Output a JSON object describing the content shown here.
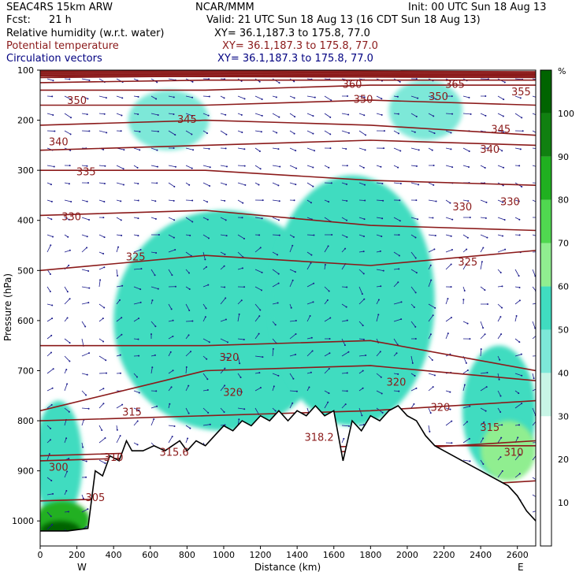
{
  "header": {
    "model": "SEAC4RS 15km ARW",
    "center": "NCAR/MMM",
    "init": "Init: 00 UTC Sun 18 Aug 13",
    "fcst_label": "Fcst:",
    "fcst_value": "21 h",
    "valid": "Valid: 21 UTC Sun 18 Aug 13 (16 CDT Sun 18 Aug 13)",
    "fields": [
      {
        "name": "Relative humidity (w.r.t. water)",
        "xy": "XY=  36.1,187.3 to 175.8, 77.0",
        "color": "#000000"
      },
      {
        "name": "Potential temperature",
        "xy": "XY=  36.1,187.3 to 175.8, 77.0",
        "color": "#8b1a1a"
      },
      {
        "name": "Circulation vectors",
        "xy": "XY=  36.1,187.3 to 175.8, 77.0",
        "color": "#000080"
      }
    ]
  },
  "chart_data": {
    "type": "heatmap",
    "xlabel": "Distance (km)",
    "ylabel": "Pressure (hPa)",
    "xlim": [
      0,
      2700
    ],
    "ylim": [
      1050,
      100
    ],
    "x_ticks": [
      0,
      200,
      400,
      600,
      800,
      1000,
      1200,
      1400,
      1600,
      1800,
      2000,
      2200,
      2400,
      2600
    ],
    "y_ticks": [
      100,
      200,
      300,
      400,
      500,
      600,
      700,
      800,
      900,
      1000
    ],
    "x_end_labels": {
      "left": "W",
      "right": "E"
    },
    "colorbar": {
      "unit": "%",
      "levels": [
        10,
        20,
        30,
        40,
        50,
        60,
        70,
        80,
        90,
        100
      ],
      "colors": [
        "#ffffff",
        "#ffffff",
        "#ffffff",
        "#c8f5e6",
        "#7de8d8",
        "#40dcc0",
        "#90ee90",
        "#50d850",
        "#20b020",
        "#108010",
        "#006400"
      ]
    },
    "rh_blobs": [
      {
        "x": 1000,
        "p": 520,
        "rx": 420,
        "rp": 130,
        "level": 7
      },
      {
        "x": 1200,
        "p": 520,
        "rx": 200,
        "rp": 90,
        "level": 8
      },
      {
        "x": 1050,
        "p": 500,
        "rx": 90,
        "rp": 70,
        "level": 9
      },
      {
        "x": 1300,
        "p": 500,
        "rx": 80,
        "rp": 70,
        "level": 9
      },
      {
        "x": 1600,
        "p": 480,
        "rx": 200,
        "rp": 120,
        "level": 7
      },
      {
        "x": 1900,
        "p": 520,
        "rx": 120,
        "rp": 120,
        "level": 7
      },
      {
        "x": 1000,
        "p": 600,
        "rx": 600,
        "rp": 220,
        "level": 5
      },
      {
        "x": 1700,
        "p": 560,
        "rx": 450,
        "rp": 250,
        "level": 5
      },
      {
        "x": 2500,
        "p": 780,
        "rx": 200,
        "rp": 130,
        "level": 5
      },
      {
        "x": 2550,
        "p": 860,
        "rx": 150,
        "rp": 60,
        "level": 6
      },
      {
        "x": 700,
        "p": 200,
        "rx": 220,
        "rp": 60,
        "level": 4
      },
      {
        "x": 2100,
        "p": 180,
        "rx": 200,
        "rp": 60,
        "level": 4
      },
      {
        "x": 100,
        "p": 880,
        "rx": 130,
        "rp": 120,
        "level": 5
      },
      {
        "x": 120,
        "p": 1000,
        "rx": 150,
        "rp": 40,
        "level": 8
      },
      {
        "x": 110,
        "p": 1020,
        "rx": 110,
        "rp": 20,
        "level": 10
      }
    ],
    "theta_contours": [
      {
        "label": "300",
        "p": [
          880,
          870,
          860,
          840
        ]
      },
      {
        "label": "305",
        "p": [
          960,
          950,
          940,
          920
        ]
      },
      {
        "label": "310",
        "p": [
          800,
          790,
          780,
          760
        ]
      },
      {
        "label": "315",
        "p": [
          780,
          700,
          690,
          720
        ]
      },
      {
        "label": "318.2",
        "p": [
          870,
          860,
          850,
          850
        ]
      },
      {
        "label": "320",
        "p": [
          650,
          650,
          640,
          700
        ]
      },
      {
        "label": "325",
        "p": [
          500,
          470,
          490,
          460
        ]
      },
      {
        "label": "330",
        "p": [
          390,
          380,
          410,
          420
        ]
      },
      {
        "label": "335",
        "p": [
          300,
          300,
          320,
          330
        ]
      },
      {
        "label": "340",
        "p": [
          260,
          250,
          240,
          250
        ]
      },
      {
        "label": "345",
        "p": [
          210,
          200,
          210,
          230
        ]
      },
      {
        "label": "350",
        "p": [
          170,
          170,
          160,
          170
        ]
      },
      {
        "label": "355",
        "p": [
          140,
          140,
          130,
          130
        ]
      },
      {
        "label": "360",
        "p": [
          125,
          120,
          120,
          120
        ]
      },
      {
        "label": "365",
        "p": [
          115,
          112,
          110,
          110
        ]
      }
    ],
    "contour_label_positions": [
      {
        "text": "300",
        "x": 100,
        "p": 900
      },
      {
        "text": "305",
        "x": 300,
        "p": 960
      },
      {
        "text": "310",
        "x": 400,
        "p": 880
      },
      {
        "text": "315",
        "x": 500,
        "p": 790
      },
      {
        "text": "315.6",
        "x": 730,
        "p": 870
      },
      {
        "text": "318.2",
        "x": 1520,
        "p": 840
      },
      {
        "text": "320",
        "x": 1030,
        "p": 680
      },
      {
        "text": "320",
        "x": 1050,
        "p": 750
      },
      {
        "text": "320",
        "x": 1940,
        "p": 730
      },
      {
        "text": "320",
        "x": 2180,
        "p": 780
      },
      {
        "text": "315",
        "x": 2450,
        "p": 820
      },
      {
        "text": "310",
        "x": 2580,
        "p": 870
      },
      {
        "text": "325",
        "x": 520,
        "p": 480
      },
      {
        "text": "325",
        "x": 2330,
        "p": 490
      },
      {
        "text": "330",
        "x": 170,
        "p": 400
      },
      {
        "text": "330",
        "x": 2300,
        "p": 380
      },
      {
        "text": "330",
        "x": 2560,
        "p": 370
      },
      {
        "text": "335",
        "x": 250,
        "p": 310
      },
      {
        "text": "340",
        "x": 100,
        "p": 250
      },
      {
        "text": "340",
        "x": 2450,
        "p": 265
      },
      {
        "text": "345",
        "x": 800,
        "p": 205
      },
      {
        "text": "345",
        "x": 2510,
        "p": 225
      },
      {
        "text": "350",
        "x": 200,
        "p": 168
      },
      {
        "text": "350",
        "x": 1760,
        "p": 165
      },
      {
        "text": "350",
        "x": 2170,
        "p": 160
      },
      {
        "text": "355",
        "x": 2620,
        "p": 150
      },
      {
        "text": "360",
        "x": 1700,
        "p": 135
      },
      {
        "text": "365",
        "x": 2260,
        "p": 135
      }
    ],
    "terrain": {
      "x": [
        0,
        150,
        260,
        300,
        340,
        380,
        430,
        470,
        500,
        560,
        620,
        680,
        720,
        760,
        800,
        850,
        900,
        950,
        1000,
        1050,
        1100,
        1150,
        1200,
        1250,
        1300,
        1350,
        1400,
        1450,
        1500,
        1550,
        1600,
        1650,
        1700,
        1750,
        1800,
        1850,
        1900,
        1950,
        2000,
        2050,
        2100,
        2150,
        2200,
        2250,
        2300,
        2350,
        2400,
        2450,
        2500,
        2550,
        2600,
        2650,
        2700
      ],
      "p": [
        1020,
        1020,
        1015,
        900,
        910,
        870,
        880,
        840,
        860,
        860,
        850,
        860,
        850,
        840,
        860,
        840,
        850,
        830,
        810,
        820,
        800,
        810,
        790,
        800,
        780,
        800,
        780,
        790,
        770,
        790,
        780,
        880,
        800,
        820,
        790,
        800,
        780,
        770,
        790,
        800,
        830,
        850,
        860,
        870,
        880,
        890,
        900,
        910,
        920,
        930,
        950,
        980,
        1000
      ]
    }
  }
}
